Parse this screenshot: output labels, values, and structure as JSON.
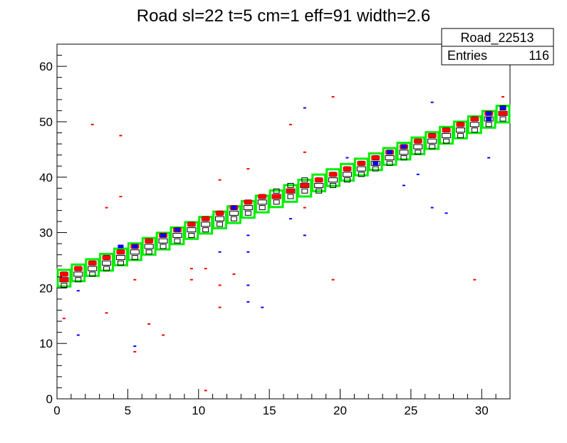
{
  "chart_data": {
    "type": "heatmap",
    "title": "Road sl=22 t=5 cm=1 eff=91 width=2.6",
    "xlabel": "",
    "ylabel": "",
    "xlim": [
      0,
      32
    ],
    "ylim": [
      0,
      64
    ],
    "x_ticks": [
      0,
      5,
      10,
      15,
      20,
      25,
      30
    ],
    "y_ticks": [
      0,
      10,
      20,
      30,
      40,
      50,
      60
    ],
    "grid": false,
    "stats_box": {
      "name": "Road_22513",
      "entries_label": "Entries",
      "entries_value": "116"
    },
    "colors": {
      "road_box": "#00ee00",
      "red_hits": "#ff0000",
      "blue_hits": "#0000ff",
      "black_outline": "#000000"
    },
    "road": {
      "description_units": "data",
      "y_at_x0": 21.3,
      "slope": 0.955,
      "box_width": 1,
      "box_height": 3
    },
    "red_hits": [
      [
        0.5,
        21.5
      ],
      [
        0.5,
        22.5
      ],
      [
        1.5,
        23.5
      ],
      [
        2.5,
        24.5
      ],
      [
        3.5,
        25.5
      ],
      [
        4.5,
        26.5
      ],
      [
        5.5,
        27.5
      ],
      [
        6.5,
        28.5
      ],
      [
        7.5,
        29.5
      ],
      [
        8.5,
        30.5
      ],
      [
        9.5,
        31.5
      ],
      [
        10.5,
        32.5
      ],
      [
        11.5,
        33.5
      ],
      [
        12.5,
        34.5
      ],
      [
        13.5,
        35.5
      ],
      [
        14.5,
        36.5
      ],
      [
        15.5,
        36.5
      ],
      [
        16.5,
        37.5
      ],
      [
        17.5,
        38.5
      ],
      [
        18.5,
        39.5
      ],
      [
        19.5,
        40.5
      ],
      [
        20.5,
        41.5
      ],
      [
        21.5,
        42.5
      ],
      [
        22.5,
        43.5
      ],
      [
        23.5,
        44.5
      ],
      [
        24.5,
        45.5
      ],
      [
        25.5,
        46.5
      ],
      [
        26.5,
        47.5
      ],
      [
        27.5,
        48.5
      ],
      [
        28.5,
        49.5
      ],
      [
        29.5,
        50.5
      ],
      [
        30.5,
        51.5
      ],
      [
        31.5,
        51.5
      ],
      [
        0.5,
        14.5
      ],
      [
        2.5,
        49.5
      ],
      [
        3.5,
        15.5
      ],
      [
        3.5,
        34.5
      ],
      [
        4.5,
        47.5
      ],
      [
        4.5,
        36.5
      ],
      [
        5.5,
        8.5
      ],
      [
        5.5,
        21.5
      ],
      [
        6.5,
        13.5
      ],
      [
        7.5,
        11.5
      ],
      [
        9.5,
        21.5
      ],
      [
        9.5,
        23.5
      ],
      [
        10.5,
        1.5
      ],
      [
        10.5,
        23.5
      ],
      [
        11.5,
        16.5
      ],
      [
        11.5,
        20.5
      ],
      [
        11.5,
        39.5
      ],
      [
        12.5,
        22.5
      ],
      [
        13.5,
        41.5
      ],
      [
        16.5,
        49.5
      ],
      [
        17.5,
        44.5
      ],
      [
        17.5,
        34.5
      ],
      [
        19.5,
        54.5
      ],
      [
        19.5,
        21.5
      ],
      [
        29.5,
        21.5
      ],
      [
        31.5,
        54.5
      ]
    ],
    "blue_hits": [
      [
        1.5,
        11.5
      ],
      [
        1.5,
        19.5
      ],
      [
        4.5,
        27.5
      ],
      [
        5.5,
        9.5
      ],
      [
        5.5,
        27.5
      ],
      [
        7.5,
        29.5
      ],
      [
        8.5,
        30.5
      ],
      [
        11.5,
        26.5
      ],
      [
        12.5,
        34.5
      ],
      [
        13.5,
        17.5
      ],
      [
        13.5,
        20.5
      ],
      [
        13.5,
        26.5
      ],
      [
        13.5,
        29.5
      ],
      [
        14.5,
        16.5
      ],
      [
        16.5,
        32.5
      ],
      [
        17.5,
        29.5
      ],
      [
        17.5,
        52.5
      ],
      [
        20.5,
        43.5
      ],
      [
        22.5,
        42.5
      ],
      [
        23.5,
        44.5
      ],
      [
        24.5,
        38.5
      ],
      [
        24.5,
        45.5
      ],
      [
        25.5,
        40.5
      ],
      [
        26.5,
        34.5
      ],
      [
        26.5,
        53.5
      ],
      [
        27.5,
        33.5
      ],
      [
        30.5,
        43.5
      ],
      [
        30.5,
        50.5
      ],
      [
        30.5,
        51.5
      ],
      [
        31.5,
        52.5
      ]
    ]
  }
}
